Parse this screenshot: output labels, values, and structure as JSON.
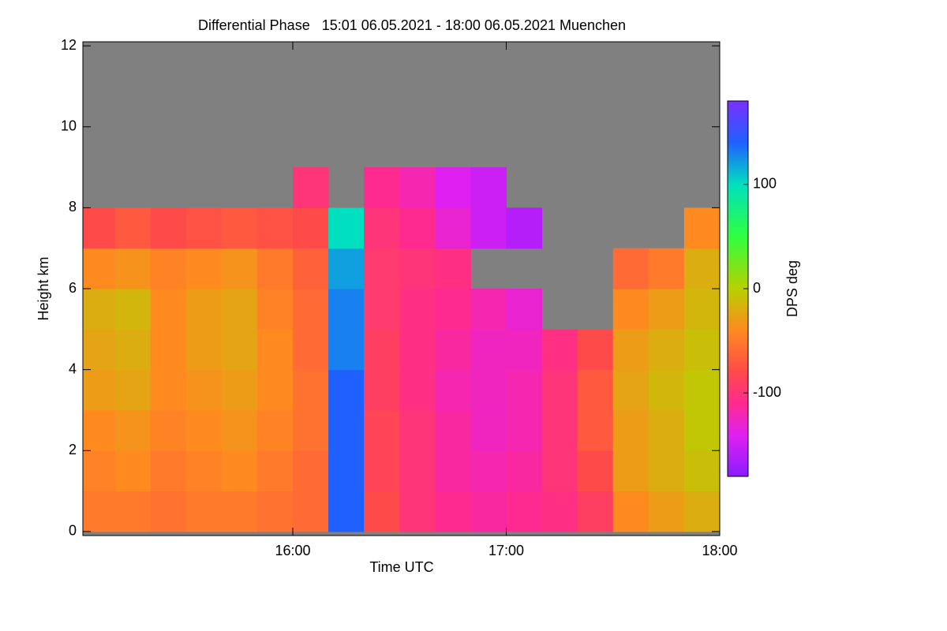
{
  "chart_data": {
    "type": "heatmap",
    "title": "Differential Phase   15:01 06.05.2021 - 18:00 06.05.2021 Muenchen",
    "x_label": "Time UTC",
    "y_label": "Height km",
    "colorbar_label": "DPS deg",
    "x": [
      15.0167,
      15.1667,
      15.3333,
      15.5,
      15.6667,
      15.8333,
      16,
      16.1667,
      16.3333,
      16.5,
      16.6667,
      16.8333,
      17,
      17.1667,
      17.3333,
      17.5,
      17.6667,
      17.8333,
      18
    ],
    "y": [
      0,
      1,
      2,
      3,
      4,
      5,
      6,
      7,
      8,
      9,
      10,
      11,
      12
    ],
    "z": [
      [
        -50,
        -50,
        -55,
        -50,
        -50,
        -55,
        -60,
        140,
        -80,
        -100,
        -110,
        -115,
        -110,
        -105,
        -90,
        -40,
        -30,
        -20
      ],
      [
        -45,
        -40,
        -50,
        -45,
        -40,
        -50,
        -60,
        140,
        -85,
        -100,
        -115,
        -120,
        -115,
        -100,
        -80,
        -30,
        -20,
        -10
      ],
      [
        -40,
        -35,
        -45,
        -40,
        -35,
        -45,
        -55,
        140,
        -85,
        -100,
        -115,
        -125,
        -120,
        -100,
        -70,
        -30,
        -20,
        -5
      ],
      [
        -30,
        -25,
        -40,
        -35,
        -30,
        -40,
        -55,
        140,
        -90,
        -105,
        -120,
        -125,
        -120,
        -100,
        -70,
        -25,
        -15,
        -5
      ],
      [
        -25,
        -20,
        -40,
        -30,
        -25,
        -40,
        -60,
        130,
        -90,
        -105,
        -115,
        -125,
        -125,
        -105,
        -80,
        -30,
        -20,
        -10
      ],
      [
        -20,
        -15,
        -40,
        -30,
        -25,
        -45,
        -60,
        130,
        -95,
        -105,
        -110,
        -120,
        -130,
        null,
        null,
        -40,
        -30,
        -15
      ],
      [
        -40,
        -35,
        -45,
        -40,
        -35,
        -50,
        -65,
        120,
        -95,
        -100,
        -105,
        null,
        null,
        null,
        null,
        -60,
        -50,
        -20
      ],
      [
        -80,
        -70,
        -80,
        -75,
        -70,
        -75,
        -80,
        100,
        -100,
        -110,
        -130,
        -150,
        -160,
        null,
        null,
        null,
        null,
        -40
      ],
      [
        null,
        null,
        null,
        null,
        null,
        null,
        -100,
        null,
        -110,
        -120,
        -140,
        -150,
        null,
        null,
        null,
        null,
        null,
        null
      ],
      [
        null,
        null,
        null,
        null,
        null,
        null,
        null,
        null,
        null,
        null,
        null,
        null,
        null,
        null,
        null,
        null,
        null,
        null
      ],
      [
        null,
        null,
        null,
        null,
        null,
        null,
        null,
        null,
        null,
        null,
        null,
        null,
        null,
        null,
        null,
        null,
        null,
        null
      ],
      [
        null,
        null,
        null,
        null,
        null,
        null,
        null,
        null,
        null,
        null,
        null,
        null,
        null,
        null,
        null,
        null,
        null,
        null
      ]
    ],
    "xlim": [
      15.0167,
      18.0
    ],
    "xticks": [
      {
        "value": 16,
        "label": "16:00"
      },
      {
        "value": 17,
        "label": "17:00"
      },
      {
        "value": 18,
        "label": "18:00"
      }
    ],
    "ylim": [
      -0.1,
      12.1
    ],
    "yticks": [
      0,
      2,
      4,
      6,
      8,
      10,
      12
    ],
    "zlim": [
      -180,
      180
    ],
    "zticks": [
      -100,
      0,
      100
    ],
    "missing_color": "#808080",
    "colorscale": [
      [
        -180,
        "#8a1cff"
      ],
      [
        -140,
        "#e020f0"
      ],
      [
        -110,
        "#ff2a90"
      ],
      [
        -80,
        "#ff4a4a"
      ],
      [
        -40,
        "#ff8a20"
      ],
      [
        0,
        "#b8d000"
      ],
      [
        50,
        "#30ff40"
      ],
      [
        100,
        "#00e0c0"
      ],
      [
        140,
        "#2060ff"
      ],
      [
        180,
        "#7a30ff"
      ]
    ]
  }
}
